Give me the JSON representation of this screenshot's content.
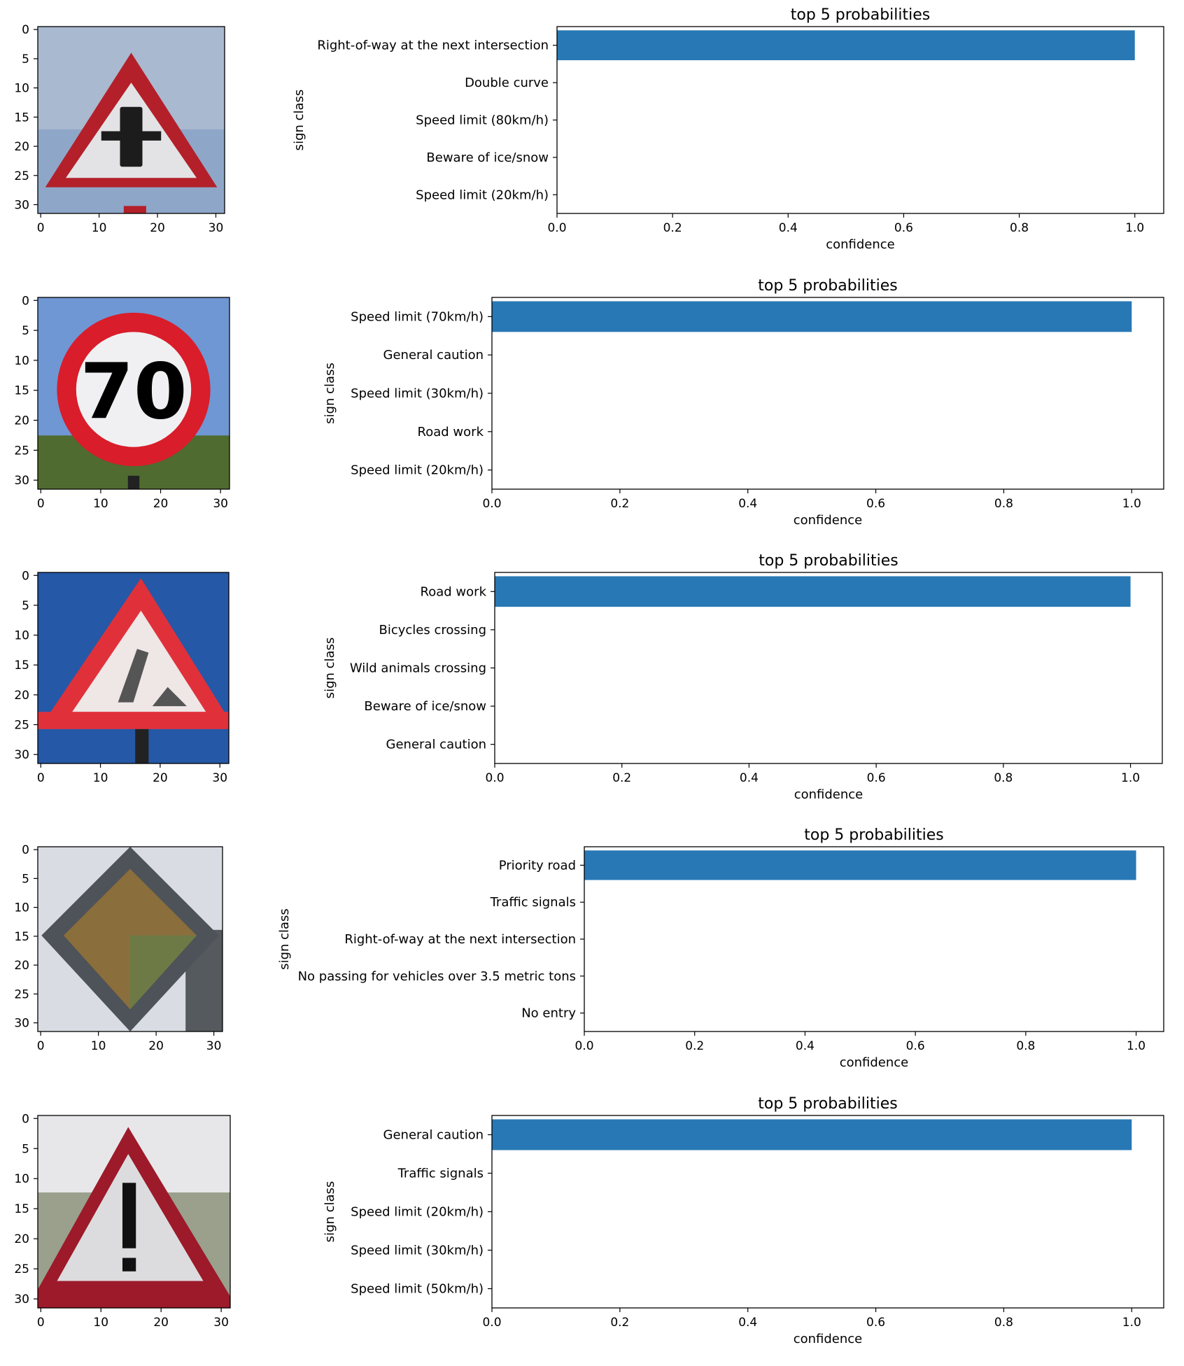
{
  "colors": {
    "bar": "#2878b5",
    "frame": "#000000",
    "background": "#ffffff"
  },
  "image_axes": {
    "xticks": [
      0,
      10,
      20,
      30
    ],
    "yticks": [
      0,
      5,
      10,
      15,
      20,
      25,
      30
    ]
  },
  "chart_data": [
    {
      "type": "bar",
      "orientation": "horizontal",
      "title": "top 5 probabilities",
      "xlabel": "confidence",
      "ylabel": "sign class",
      "xlim": [
        0,
        1.05
      ],
      "xticks": [
        0.0,
        0.2,
        0.4,
        0.6,
        0.8,
        1.0
      ],
      "categories": [
        "Right-of-way at the next intersection",
        "Double curve",
        "Speed limit (80km/h)",
        "Beware of ice/snow",
        "Speed limit (20km/h)"
      ],
      "values": [
        1.0,
        0.0,
        0.0,
        0.0,
        0.0
      ],
      "thumbnail": "warning-triangle-traffic-signals-sign"
    },
    {
      "type": "bar",
      "orientation": "horizontal",
      "title": "top 5 probabilities",
      "xlabel": "confidence",
      "ylabel": "sign class",
      "xlim": [
        0,
        1.05
      ],
      "xticks": [
        0.0,
        0.2,
        0.4,
        0.6,
        0.8,
        1.0
      ],
      "categories": [
        "Speed limit (70km/h)",
        "General caution",
        "Speed limit (30km/h)",
        "Road work",
        "Speed limit (20km/h)"
      ],
      "values": [
        1.0,
        0.0,
        0.0,
        0.0,
        0.0
      ],
      "thumbnail": "speed-limit-70-sign"
    },
    {
      "type": "bar",
      "orientation": "horizontal",
      "title": "top 5 probabilities",
      "xlabel": "confidence",
      "ylabel": "sign class",
      "xlim": [
        0,
        1.05
      ],
      "xticks": [
        0.0,
        0.2,
        0.4,
        0.6,
        0.8,
        1.0
      ],
      "categories": [
        "Road work",
        "Bicycles crossing",
        "Wild animals crossing",
        "Beware of ice/snow",
        "General caution"
      ],
      "values": [
        1.0,
        0.0,
        0.0,
        0.0,
        0.0
      ],
      "thumbnail": "road-work-sign"
    },
    {
      "type": "bar",
      "orientation": "horizontal",
      "title": "top 5 probabilities",
      "xlabel": "confidence",
      "ylabel": "sign class",
      "xlim": [
        0,
        1.05
      ],
      "xticks": [
        0.0,
        0.2,
        0.4,
        0.6,
        0.8,
        1.0
      ],
      "categories": [
        "Priority road",
        "Traffic signals",
        "Right-of-way at the next intersection",
        "No passing for vehicles over 3.5 metric tons",
        "No entry"
      ],
      "values": [
        1.0,
        0.0,
        0.0,
        0.0,
        0.0
      ],
      "thumbnail": "priority-road-sign"
    },
    {
      "type": "bar",
      "orientation": "horizontal",
      "title": "top 5 probabilities",
      "xlabel": "confidence",
      "ylabel": "sign class",
      "xlim": [
        0,
        1.05
      ],
      "xticks": [
        0.0,
        0.2,
        0.4,
        0.6,
        0.8,
        1.0
      ],
      "categories": [
        "General caution",
        "Traffic signals",
        "Speed limit (20km/h)",
        "Speed limit (30km/h)",
        "Speed limit (50km/h)"
      ],
      "values": [
        1.0,
        0.0,
        0.0,
        0.0,
        0.0
      ],
      "thumbnail": "general-caution-sign"
    }
  ]
}
